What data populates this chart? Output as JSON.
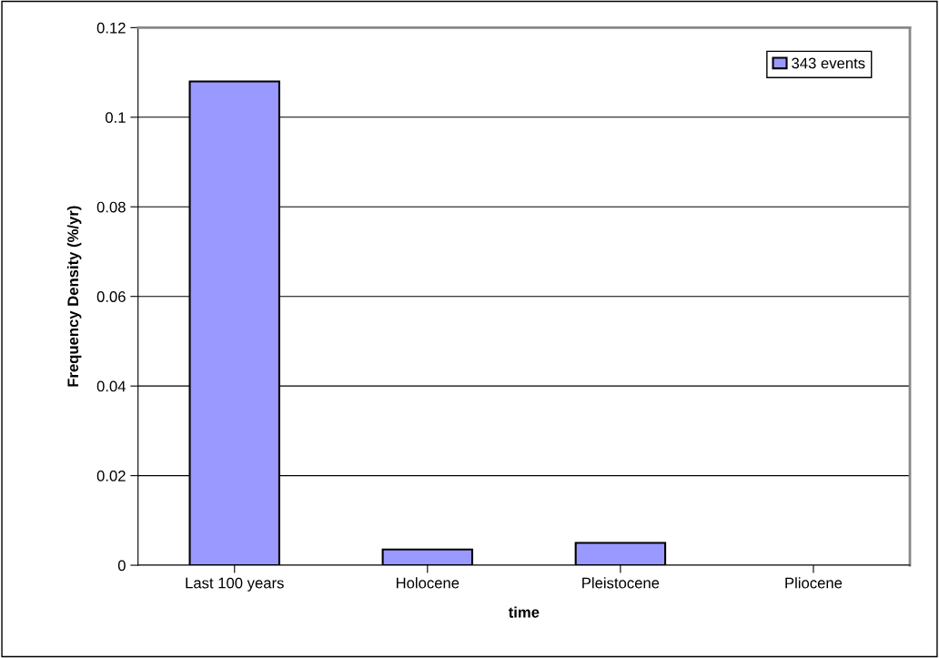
{
  "chart_data": {
    "type": "bar",
    "xlabel": "time",
    "ylabel": "Frequency Density (%/yr)",
    "categories": [
      "Last 100 years",
      "Holocene",
      "Pleistocene",
      "Pliocene"
    ],
    "series": [
      {
        "name": "343 events",
        "color": "#9999ff",
        "values": [
          0.108,
          0.0035,
          0.005,
          0
        ]
      }
    ],
    "ylim": [
      0,
      0.12
    ],
    "yticks": [
      0,
      0.02,
      0.04,
      0.06,
      0.08,
      {
        "value": 0.1,
        "label": "0.1"
      },
      0.12
    ],
    "grid": "y",
    "legend": "top right"
  }
}
